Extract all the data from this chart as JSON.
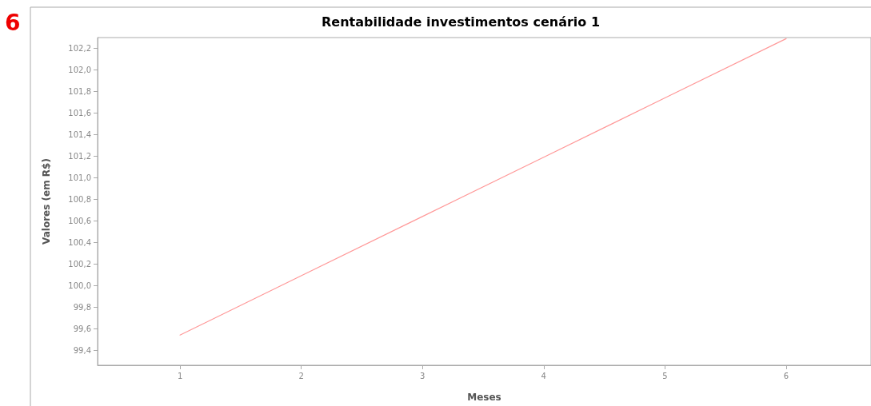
{
  "chart_data": {
    "type": "line",
    "title": "Rentabilidade investimentos cenário 1",
    "xlabel": "Meses",
    "ylabel": "Valores (em R$)",
    "annotations": [
      "6"
    ],
    "x": [
      1,
      2,
      3,
      4,
      5,
      6
    ],
    "series": [
      {
        "color": "#ff9999",
        "values": [
          99.54,
          100.09,
          100.64,
          101.19,
          101.74,
          102.29
        ]
      }
    ],
    "xlim": [
      0.32,
      6.7
    ],
    "xticks": [
      1,
      2,
      3,
      4,
      5,
      6
    ],
    "ylim": [
      99.26,
      102.3
    ],
    "yticks": [
      {
        "value": 99.4,
        "label": "99,4"
      },
      {
        "value": 99.6,
        "label": "99,6"
      },
      {
        "value": 99.8,
        "label": "99,8"
      },
      {
        "value": 100.0,
        "label": "100,0"
      },
      {
        "value": 100.2,
        "label": "100,2"
      },
      {
        "value": 100.4,
        "label": "100,4"
      },
      {
        "value": 100.6,
        "label": "100,6"
      },
      {
        "value": 100.8,
        "label": "100,8"
      },
      {
        "value": 101.0,
        "label": "101,0"
      },
      {
        "value": 101.2,
        "label": "101,2"
      },
      {
        "value": 101.4,
        "label": "101,4"
      },
      {
        "value": 101.6,
        "label": "101,6"
      },
      {
        "value": 101.8,
        "label": "101,8"
      },
      {
        "value": 102.0,
        "label": "102,0"
      },
      {
        "value": 102.2,
        "label": "102,2"
      }
    ],
    "grid": false,
    "marker": "none",
    "line_style": "solid"
  }
}
